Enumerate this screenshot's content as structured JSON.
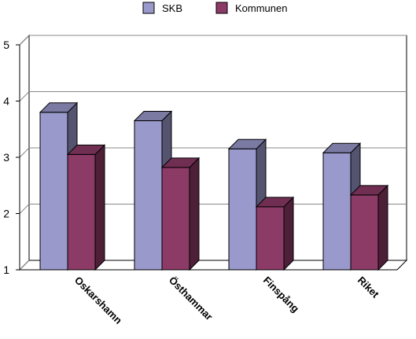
{
  "chart_data": {
    "type": "bar",
    "style": "3d-clustered-column",
    "categories": [
      "Oskarshamn",
      "Östhammar",
      "Finspång",
      "Riket"
    ],
    "series": [
      {
        "name": "SKB",
        "values": [
          3.8,
          3.65,
          3.15,
          3.08
        ],
        "color": "#9999CC"
      },
      {
        "name": "Kommunen",
        "values": [
          3.05,
          2.82,
          2.12,
          2.33
        ],
        "color": "#8C3A66"
      }
    ],
    "yticks": [
      "1",
      "2",
      "3",
      "4",
      "5"
    ],
    "ylim": [
      1,
      5
    ],
    "grid": true,
    "legend_position": "top",
    "title": "",
    "xlabel": "",
    "ylabel": ""
  }
}
